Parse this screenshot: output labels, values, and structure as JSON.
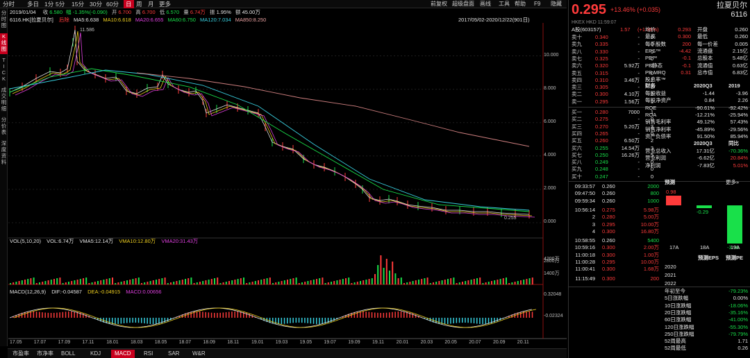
{
  "toolbar": {
    "items": [
      "分时",
      "多日",
      "1分",
      "5分",
      "15分",
      "30分",
      "60分",
      "日",
      "周",
      "月",
      "更多"
    ],
    "active": "日",
    "right": [
      "前复权",
      "超级盘面",
      "画线",
      "工具",
      "帮助",
      "F9",
      "隐藏"
    ]
  },
  "sidebar": {
    "items": [
      "分时图",
      "K线图",
      "TICK",
      "成交明细",
      "分价表",
      "深度资料"
    ],
    "active": "K线图"
  },
  "info": {
    "date": "2019/01/04",
    "close_l": "收",
    "close": "6.580",
    "pct": "幅 -1.35%(-0.090)",
    "open_l": "开",
    "open": "6.700",
    "high_l": "高",
    "high": "6.700",
    "low_l": "低",
    "low": "6.570",
    "vol_l": "量",
    "vol": "6.74万",
    "amp_l": "振",
    "amp": "1.95%",
    "amt_l": "额",
    "amt": "45.00万"
  },
  "ma_line": {
    "code": "6116.HK[拉夏贝尔]",
    "adj": "后除",
    "ma5": "MA5:6.638",
    "ma10": "MA10:6.618",
    "ma20": "MA20:6.655",
    "ma60": "MA60:6.750",
    "ma120": "MA120:7.034",
    "ma850": "MA850:8.250"
  },
  "range": "2017/05/02-2020/12/22(901日)",
  "price_axis": [
    "10.000",
    "8.000",
    "6.000",
    "4.000",
    "2.000",
    "0.000"
  ],
  "annot": {
    "hi": "11.586",
    "lo": "0.255"
  },
  "vol_line": {
    "l": "VOL(5,10,20)",
    "v": "VOL:6.74万",
    "a": "VMA5:12.14万",
    "b": "VMA10:12.80万",
    "c": "VMA20:31.43万"
  },
  "vol_axis": [
    "4200万",
    "2800万",
    "1400万"
  ],
  "macd_line": {
    "l": "MACD(12,26,9)",
    "dif": "DIF:-0.04587",
    "dea": "DEA:-0.04915",
    "macd": "MACD:0.00656"
  },
  "macd_axis": [
    "0.32048",
    "-0.02324"
  ],
  "dates": [
    "17.05",
    "17.07",
    "17.09",
    "17.11",
    "18.01",
    "18.03",
    "18.05",
    "18.07",
    "18.09",
    "18.11",
    "19.01",
    "19.03",
    "19.05",
    "19.07",
    "19.09",
    "19.11",
    "20.01",
    "20.03",
    "20.05",
    "20.07",
    "20.09",
    "20.11"
  ],
  "bottom_tabs": [
    "市盈率",
    "市净率",
    "BOLL",
    "KDJ",
    "MACD",
    "RSI",
    "SAR",
    "W&R"
  ],
  "bottom_active": "MACD",
  "quote": {
    "price": "0.295",
    "change": "+13.46% (+0.035)",
    "name": "拉夏贝尔",
    "code": "6116",
    "sub": "HKEX  HKD  11:59:07",
    "a_l": "A股(603157)",
    "a_p": "1.57",
    "a_c": "(+1.95%)"
  },
  "asks": [
    [
      "卖十",
      "0.340",
      "-",
      "0"
    ],
    [
      "卖九",
      "0.335",
      "-",
      "0"
    ],
    [
      "卖八",
      "0.330",
      "-",
      "0"
    ],
    [
      "卖七",
      "0.325",
      "-",
      "0"
    ],
    [
      "卖六",
      "0.320",
      "5.92万",
      "2"
    ],
    [
      "卖五",
      "0.315",
      "-",
      "0"
    ],
    [
      "卖四",
      "0.310",
      "3.46万",
      "1"
    ],
    [
      "卖三",
      "0.305",
      "-",
      "0"
    ],
    [
      "卖二",
      "0.300",
      "4.10万",
      "2"
    ],
    [
      "卖一",
      "0.295",
      "1.56万",
      "1"
    ]
  ],
  "bids": [
    [
      "买一",
      "0.280",
      "7000",
      "1"
    ],
    [
      "买二",
      "0.275",
      "-",
      "0"
    ],
    [
      "买三",
      "0.270",
      "5.20万",
      "3"
    ],
    [
      "买四",
      "0.265",
      "-",
      "0"
    ],
    [
      "买五",
      "0.260",
      "6.50万",
      "2"
    ],
    [
      "买六",
      "0.255",
      "14.54万",
      "3"
    ],
    [
      "买七",
      "0.250",
      "16.26万",
      "5"
    ],
    [
      "买八",
      "0.249",
      "-",
      "0"
    ],
    [
      "买九",
      "0.248",
      "-",
      "0"
    ],
    [
      "买十",
      "0.247",
      "-",
      "0"
    ]
  ],
  "stats": [
    [
      "均价",
      "0.293",
      "开盘",
      "0.260"
    ],
    [
      "最高",
      "0.300",
      "最低",
      "0.260"
    ],
    [
      "每手股数",
      "200",
      "每一价差",
      "0.005"
    ],
    [
      "EPS™",
      "-4.42",
      "流通盘",
      "2.15亿"
    ],
    [
      "PE™",
      "-0.1",
      "总股本",
      "5.48亿"
    ],
    [
      "PE静态",
      "-0.1",
      "流通值",
      "0.63亿"
    ],
    [
      "PB MRQ",
      "0.31",
      "总市值",
      "6.83亿"
    ],
    [
      "股息率™",
      "",
      "",
      " "
    ]
  ],
  "fin_head": [
    "财务",
    "2020Q3",
    "2019"
  ],
  "fin": [
    [
      "每股收益",
      "-1.44",
      "-3.96"
    ],
    [
      "每股净资产",
      "0.84",
      "2.26"
    ],
    [
      "ROE",
      "-90.61%",
      "-92.42%"
    ],
    [
      "ROA",
      "-12.21%",
      "-25.94%"
    ],
    [
      "销售毛利率",
      "49.12%",
      "57.43%"
    ],
    [
      "销售净利率",
      "-45.89%",
      "-29.56%"
    ],
    [
      "资产负债率",
      "91.50%",
      "85.94%"
    ]
  ],
  "fin2_head": [
    "",
    "2020Q3",
    "同比"
  ],
  "fin2": [
    [
      "营业总收入",
      "17.31亿",
      "-70.36%"
    ],
    [
      "营业利润",
      "-6.62亿",
      "20.84%"
    ],
    [
      "净利润",
      "-7.83亿",
      "5.01%"
    ]
  ],
  "ticks": [
    [
      "09:33:57",
      "0.260",
      "2000"
    ],
    [
      "09:47:50",
      "0.260",
      "800"
    ],
    [
      "09:59:34",
      "0.260",
      "1000"
    ],
    [
      "10:56:14",
      "0.275",
      "5.98万"
    ],
    [
      "2",
      "0.280",
      "5.00万"
    ],
    [
      "3",
      "0.295",
      "10.00万"
    ],
    [
      "4",
      "0.300",
      "16.80万"
    ],
    [
      "10:58:55",
      "0.260",
      "5400"
    ],
    [
      "10:59:16",
      "0.300",
      "2.00万"
    ],
    [
      "11:00:18",
      "0.300",
      "1.00万"
    ],
    [
      "11:00:28",
      "0.295",
      "10.00万"
    ],
    [
      "11:00:41",
      "0.300",
      "1.68万"
    ],
    [
      "11:15:49",
      "0.300",
      "200"
    ]
  ],
  "forecast": {
    "title": "预测",
    "more": "更多»",
    "bars": [
      {
        "label": "17A",
        "value": 0.98
      },
      {
        "label": "18A",
        "value": -0.29
      },
      {
        "label": "19A",
        "value": -3.96
      }
    ]
  },
  "eps_head": [
    "",
    "预测EPS",
    "预测PE"
  ],
  "eps_years": [
    "2020",
    "2021",
    "2022"
  ],
  "perf": [
    [
      "年初至今",
      "-79.23%"
    ],
    [
      "5日涨跌幅",
      "0.00%"
    ],
    [
      "10日涨跌幅",
      "-18.06%"
    ],
    [
      "20日涨跌幅",
      "-35.16%"
    ],
    [
      "60日涨跌幅",
      "-41.00%"
    ],
    [
      "120日涨跌幅",
      "-55.30%"
    ],
    [
      "250日涨跌幅",
      "-79.79%"
    ],
    [
      "52周最高",
      "1.71"
    ],
    [
      "52周最低",
      "0.26"
    ]
  ],
  "colors": {
    "up": "#ff3b3b",
    "down": "#19e04a",
    "accent": "#c8001e"
  }
}
